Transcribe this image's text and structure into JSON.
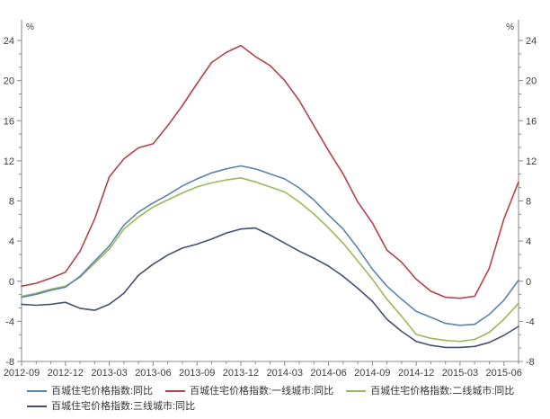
{
  "chart_data": {
    "type": "line",
    "title": "",
    "unit_label": "%",
    "grid": false,
    "legend_position": "bottom",
    "ylim": [
      -8,
      24
    ],
    "y_ticks": [
      -8,
      -4,
      0,
      4,
      8,
      12,
      16,
      20,
      24
    ],
    "x": [
      "2012-09",
      "2012-10",
      "2012-11",
      "2012-12",
      "2013-01",
      "2013-02",
      "2013-03",
      "2013-04",
      "2013-05",
      "2013-06",
      "2013-07",
      "2013-08",
      "2013-09",
      "2013-10",
      "2013-11",
      "2013-12",
      "2014-01",
      "2014-02",
      "2014-03",
      "2014-04",
      "2014-05",
      "2014-06",
      "2014-07",
      "2014-08",
      "2014-09",
      "2014-10",
      "2014-11",
      "2014-12",
      "2015-01",
      "2015-02",
      "2015-03",
      "2015-04",
      "2015-05",
      "2015-06",
      "2015-07"
    ],
    "x_tick_labels": [
      "2012-09",
      "2012-12",
      "2013-03",
      "2013-06",
      "2013-09",
      "2013-12",
      "2014-03",
      "2014-06",
      "2014-09",
      "2014-12",
      "2015-03",
      "2015-06"
    ],
    "series": [
      {
        "name": "百城住宅价格指数:同比",
        "color": "#5b83b0",
        "values": [
          -1.6,
          -1.3,
          -0.9,
          -0.6,
          0.5,
          2.0,
          3.5,
          5.6,
          6.9,
          7.8,
          8.6,
          9.5,
          10.2,
          10.8,
          11.2,
          11.5,
          11.2,
          10.7,
          10.2,
          9.3,
          8.1,
          6.6,
          5.2,
          3.3,
          1.2,
          -0.5,
          -1.8,
          -3.0,
          -3.6,
          -4.2,
          -4.4,
          -4.3,
          -3.3,
          -1.9,
          0.1
        ]
      },
      {
        "name": "百城住宅价格指数:一线城市:同比",
        "color": "#b5414b",
        "values": [
          -0.5,
          -0.2,
          0.3,
          0.9,
          3.0,
          6.2,
          10.4,
          12.2,
          13.3,
          13.7,
          15.5,
          17.5,
          19.7,
          21.8,
          22.8,
          23.5,
          22.4,
          21.5,
          20.0,
          18.0,
          15.5,
          13.0,
          10.7,
          7.9,
          5.8,
          3.1,
          1.9,
          0.2,
          -1.0,
          -1.6,
          -1.7,
          -1.5,
          1.3,
          6.2,
          9.9
        ]
      },
      {
        "name": "百城住宅价格指数:二线城市:同比",
        "color": "#9cb85a",
        "values": [
          -1.5,
          -1.2,
          -0.8,
          -0.5,
          0.4,
          1.8,
          3.2,
          5.2,
          6.4,
          7.4,
          8.1,
          8.8,
          9.4,
          9.8,
          10.1,
          10.3,
          9.9,
          9.4,
          8.9,
          7.9,
          6.7,
          5.3,
          3.8,
          2.0,
          0.2,
          -1.8,
          -3.5,
          -5.3,
          -5.7,
          -5.9,
          -6.0,
          -5.8,
          -5.1,
          -3.8,
          -2.2
        ]
      },
      {
        "name": "百城住宅价格指数:三线城市:同比",
        "color": "#44506e",
        "values": [
          -2.3,
          -2.4,
          -2.3,
          -2.1,
          -2.7,
          -2.9,
          -2.3,
          -1.2,
          0.6,
          1.7,
          2.6,
          3.3,
          3.7,
          4.2,
          4.8,
          5.2,
          5.3,
          4.6,
          3.8,
          3.0,
          2.3,
          1.5,
          0.5,
          -0.7,
          -2.0,
          -3.8,
          -5.0,
          -6.0,
          -6.4,
          -6.6,
          -6.6,
          -6.5,
          -6.1,
          -5.4,
          -4.5
        ]
      }
    ]
  },
  "style": {
    "axis_color": "#8a8a8a",
    "tick_label_color": "#3c3c3c",
    "background": "#ffffff"
  },
  "legend": {
    "rows": [
      [
        0,
        1,
        2
      ],
      [
        3
      ]
    ]
  }
}
